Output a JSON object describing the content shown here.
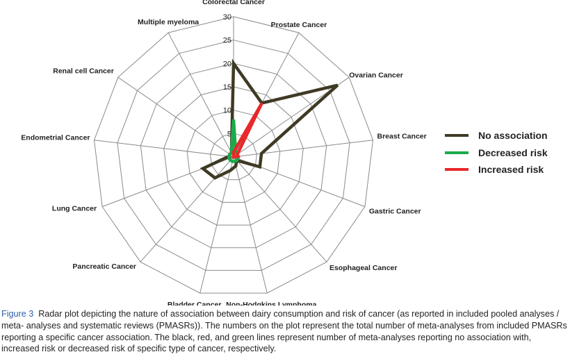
{
  "chart_data": {
    "type": "radar",
    "axes": [
      "Colorectal Cancer",
      "Prostate Cancer",
      "Ovarian Cancer",
      "Breast Cancer",
      "Gastric Cancer",
      "Esophageal Cancer",
      "Non-Hodgkins Lymphoma",
      "Bladder Cancer",
      "Pancreatic Cancer",
      "Lung Cancer",
      "Endometrial Cancer",
      "Renal cell Cancer",
      "Multiple myeloma"
    ],
    "ticks": [
      0,
      5,
      10,
      15,
      20,
      25,
      30
    ],
    "rlim": [
      0,
      30
    ],
    "series": [
      {
        "name": "No association",
        "color": "#3f3a24",
        "values": [
          20,
          13,
          27,
          6,
          6,
          1,
          2,
          3,
          6,
          7,
          1,
          1,
          1
        ]
      },
      {
        "name": "Decreased risk",
        "color": "#1aaa4a",
        "values": [
          8,
          1,
          1,
          1,
          1,
          1,
          1,
          1,
          1,
          1,
          1,
          1,
          1
        ]
      },
      {
        "name": "Increased risk",
        "color": "#e8282a",
        "values": [
          1,
          13,
          1,
          1,
          0,
          0,
          0,
          0,
          0,
          0,
          0,
          0,
          0
        ]
      }
    ],
    "legend_position": "right"
  },
  "legend": [
    {
      "label": "No association",
      "color": "#3f3a24"
    },
    {
      "label": "Decreased risk",
      "color": "#1aaa4a"
    },
    {
      "label": "Increased risk",
      "color": "#e8282a"
    }
  ],
  "caption": {
    "label": "Figure 3",
    "text": "Radar plot depicting the nature of association between dairy consumption and risk of cancer (as reported in included pooled analyses / meta- analyses and systematic reviews (PMASRs)). The numbers on the plot represent the total number of meta-analyses from included PMASRs reporting a specific cancer association. The black, red, and green lines represent number of meta-analyses reporting no association with, increased risk or decreased risk of specific type of cancer, respectively."
  }
}
